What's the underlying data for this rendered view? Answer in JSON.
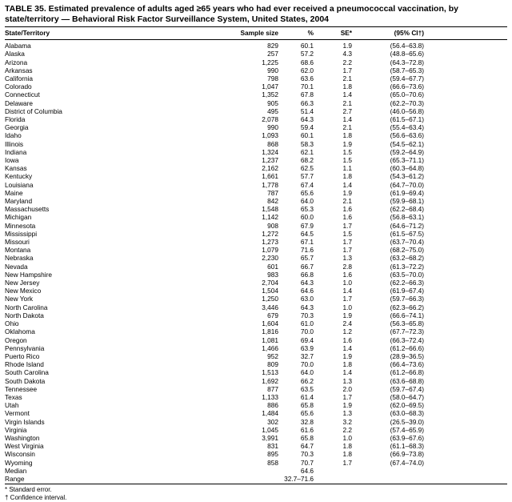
{
  "title": "TABLE 35. Estimated prevalence of adults aged ≥65 years who had ever received a pneumococcal vaccination, by state/territory — Behavioral Risk Factor Surveillance System, United States, 2004",
  "columns": [
    "State/Territory",
    "Sample size",
    "%",
    "SE*",
    "(95% CI†)"
  ],
  "rows": [
    [
      "Alabama",
      "829",
      "60.1",
      "1.9",
      "(56.4–63.8)"
    ],
    [
      "Alaska",
      "257",
      "57.2",
      "4.3",
      "(48.8–65.6)"
    ],
    [
      "Arizona",
      "1,225",
      "68.6",
      "2.2",
      "(64.3–72.8)"
    ],
    [
      "Arkansas",
      "990",
      "62.0",
      "1.7",
      "(58.7–65.3)"
    ],
    [
      "California",
      "798",
      "63.6",
      "2.1",
      "(59.4–67.7)"
    ],
    [
      "Colorado",
      "1,047",
      "70.1",
      "1.8",
      "(66.6–73.6)"
    ],
    [
      "Connecticut",
      "1,352",
      "67.8",
      "1.4",
      "(65.0–70.6)"
    ],
    [
      "Delaware",
      "905",
      "66.3",
      "2.1",
      "(62.2–70.3)"
    ],
    [
      "District of Columbia",
      "495",
      "51.4",
      "2.7",
      "(46.0–56.8)"
    ],
    [
      "Florida",
      "2,078",
      "64.3",
      "1.4",
      "(61.5–67.1)"
    ],
    [
      "Georgia",
      "990",
      "59.4",
      "2.1",
      "(55.4–63.4)"
    ],
    [
      "Idaho",
      "1,093",
      "60.1",
      "1.8",
      "(56.6–63.6)"
    ],
    [
      "Illinois",
      "868",
      "58.3",
      "1.9",
      "(54.5–62.1)"
    ],
    [
      "Indiana",
      "1,324",
      "62.1",
      "1.5",
      "(59.2–64.9)"
    ],
    [
      "Iowa",
      "1,237",
      "68.2",
      "1.5",
      "(65.3–71.1)"
    ],
    [
      "Kansas",
      "2,162",
      "62.5",
      "1.1",
      "(60.3–64.8)"
    ],
    [
      "Kentucky",
      "1,661",
      "57.7",
      "1.8",
      "(54.3–61.2)"
    ],
    [
      "Louisiana",
      "1,778",
      "67.4",
      "1.4",
      "(64.7–70.0)"
    ],
    [
      "Maine",
      "787",
      "65.6",
      "1.9",
      "(61.9–69.4)"
    ],
    [
      "Maryland",
      "842",
      "64.0",
      "2.1",
      "(59.9–68.1)"
    ],
    [
      "Massachusetts",
      "1,548",
      "65.3",
      "1.6",
      "(62.2–68.4)"
    ],
    [
      "Michigan",
      "1,142",
      "60.0",
      "1.6",
      "(56.8–63.1)"
    ],
    [
      "Minnesota",
      "908",
      "67.9",
      "1.7",
      "(64.6–71.2)"
    ],
    [
      "Mississippi",
      "1,272",
      "64.5",
      "1.5",
      "(61.5–67.5)"
    ],
    [
      "Missouri",
      "1,273",
      "67.1",
      "1.7",
      "(63.7–70.4)"
    ],
    [
      "Montana",
      "1,079",
      "71.6",
      "1.7",
      "(68.2–75.0)"
    ],
    [
      "Nebraska",
      "2,230",
      "65.7",
      "1.3",
      "(63.2–68.2)"
    ],
    [
      "Nevada",
      "601",
      "66.7",
      "2.8",
      "(61.3–72.2)"
    ],
    [
      "New Hampshire",
      "983",
      "66.8",
      "1.6",
      "(63.5–70.0)"
    ],
    [
      "New Jersey",
      "2,704",
      "64.3",
      "1.0",
      "(62.2–66.3)"
    ],
    [
      "New Mexico",
      "1,504",
      "64.6",
      "1.4",
      "(61.9–67.4)"
    ],
    [
      "New York",
      "1,250",
      "63.0",
      "1.7",
      "(59.7–66.3)"
    ],
    [
      "North Carolina",
      "3,446",
      "64.3",
      "1.0",
      "(62.3–66.2)"
    ],
    [
      "North Dakota",
      "679",
      "70.3",
      "1.9",
      "(66.6–74.1)"
    ],
    [
      "Ohio",
      "1,604",
      "61.0",
      "2.4",
      "(56.3–65.8)"
    ],
    [
      "Oklahoma",
      "1,816",
      "70.0",
      "1.2",
      "(67.7–72.3)"
    ],
    [
      "Oregon",
      "1,081",
      "69.4",
      "1.6",
      "(66.3–72.4)"
    ],
    [
      "Pennsylvania",
      "1,466",
      "63.9",
      "1.4",
      "(61.2–66.6)"
    ],
    [
      "Puerto Rico",
      "952",
      "32.7",
      "1.9",
      "(28.9–36.5)"
    ],
    [
      "Rhode Island",
      "809",
      "70.0",
      "1.8",
      "(66.4–73.6)"
    ],
    [
      "South Carolina",
      "1,513",
      "64.0",
      "1.4",
      "(61.2–66.8)"
    ],
    [
      "South Dakota",
      "1,692",
      "66.2",
      "1.3",
      "(63.6–68.8)"
    ],
    [
      "Tennessee",
      "877",
      "63.5",
      "2.0",
      "(59.7–67.4)"
    ],
    [
      "Texas",
      "1,133",
      "61.4",
      "1.7",
      "(58.0–64.7)"
    ],
    [
      "Utah",
      "886",
      "65.8",
      "1.9",
      "(62.0–69.5)"
    ],
    [
      "Vermont",
      "1,484",
      "65.6",
      "1.3",
      "(63.0–68.3)"
    ],
    [
      "Virgin Islands",
      "302",
      "32.8",
      "3.2",
      "(26.5–39.0)"
    ],
    [
      "Virginia",
      "1,045",
      "61.6",
      "2.2",
      "(57.4–65.9)"
    ],
    [
      "Washington",
      "3,991",
      "65.8",
      "1.0",
      "(63.9–67.6)"
    ],
    [
      "West Virginia",
      "831",
      "64.7",
      "1.8",
      "(61.1–68.3)"
    ],
    [
      "Wisconsin",
      "895",
      "70.3",
      "1.8",
      "(66.9–73.8)"
    ],
    [
      "Wyoming",
      "858",
      "70.7",
      "1.7",
      "(67.4–74.0)"
    ],
    [
      "Median",
      "",
      "64.6",
      "",
      ""
    ],
    [
      "Range",
      "",
      "32.7–71.6",
      "",
      ""
    ]
  ],
  "footnotes": [
    "* Standard error.",
    "† Confidence interval."
  ]
}
